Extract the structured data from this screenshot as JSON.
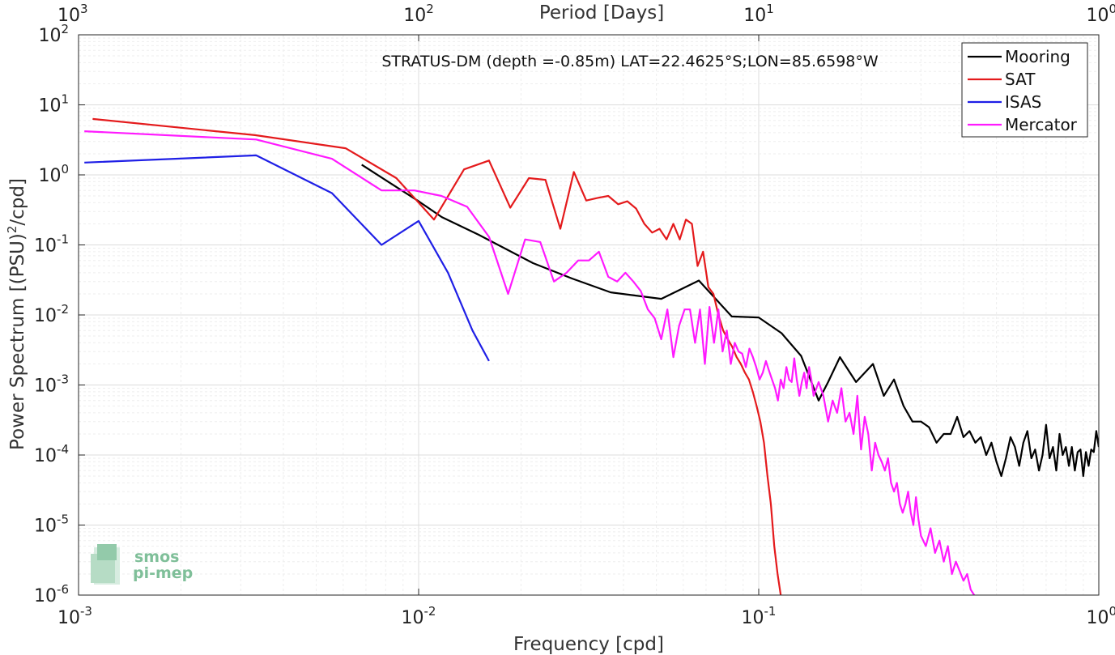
{
  "chart_data": {
    "type": "line",
    "title": "STRATUS-DM (depth =-0.85m) LAT=22.4625°S;LON=85.6598°W",
    "xlabel": "Frequency [cpd]",
    "ylabel": "Power Spectrum [(PSU)2/cpd]",
    "ylabel_parts": {
      "main": "Power Spectrum [(PSU)",
      "sup": "2",
      "tail": "/cpd]"
    },
    "top_xlabel": "Period [Days]",
    "xscale": "log",
    "yscale": "log",
    "xlim": [
      0.001,
      1
    ],
    "ylim": [
      1e-06,
      100
    ],
    "grid": true,
    "legend_position": "top-right",
    "x_ticks": [
      0.001,
      0.01,
      0.1,
      1
    ],
    "x_tick_labels": [
      {
        "base": "10",
        "exp": "-3"
      },
      {
        "base": "10",
        "exp": "-2"
      },
      {
        "base": "10",
        "exp": "-1"
      },
      {
        "base": "10",
        "exp": "0"
      }
    ],
    "y_ticks": [
      1e-06,
      1e-05,
      0.0001,
      0.001,
      0.01,
      0.1,
      1,
      10,
      100
    ],
    "y_tick_labels": [
      {
        "base": "10",
        "exp": "-6"
      },
      {
        "base": "10",
        "exp": "-5"
      },
      {
        "base": "10",
        "exp": "-4"
      },
      {
        "base": "10",
        "exp": "-3"
      },
      {
        "base": "10",
        "exp": "-2"
      },
      {
        "base": "10",
        "exp": "-1"
      },
      {
        "base": "10",
        "exp": "0"
      },
      {
        "base": "10",
        "exp": "1"
      },
      {
        "base": "10",
        "exp": "2"
      }
    ],
    "top_ticks": [
      1000,
      100,
      10,
      1
    ],
    "top_tick_labels": [
      {
        "base": "10",
        "exp": "3"
      },
      {
        "base": "10",
        "exp": "2"
      },
      {
        "base": "10",
        "exp": "1"
      },
      {
        "base": "10",
        "exp": "0"
      }
    ],
    "series": [
      {
        "name": "Mooring",
        "color": "#000000",
        "x": [
          0.0068,
          0.0083,
          0.01,
          0.0117,
          0.015,
          0.0217,
          0.0283,
          0.0367,
          0.0517,
          0.0667,
          0.0833,
          0.1,
          0.1167,
          0.1333,
          0.15,
          0.16,
          0.1733,
          0.1933,
          0.2167,
          0.2333,
          0.25,
          0.2667,
          0.2833,
          0.3,
          0.3167,
          0.3333,
          0.35,
          0.3667,
          0.3833,
          0.4,
          0.4167,
          0.4333,
          0.45,
          0.4667,
          0.4833,
          0.5,
          0.5167,
          0.5333,
          0.55,
          0.5667,
          0.5833,
          0.6,
          0.6167,
          0.6333,
          0.65,
          0.6667,
          0.6833,
          0.7,
          0.7167,
          0.7333,
          0.75,
          0.7667,
          0.7833,
          0.8,
          0.8167,
          0.8333,
          0.85,
          0.8667,
          0.8833,
          0.9,
          0.9167,
          0.9333,
          0.95,
          0.9667,
          0.9833,
          1.0
        ],
        "y": [
          1.4,
          0.75,
          0.42,
          0.25,
          0.14,
          0.055,
          0.033,
          0.021,
          0.017,
          0.031,
          0.0095,
          0.0092,
          0.0055,
          0.0026,
          0.0006,
          0.0011,
          0.0025,
          0.0011,
          0.002,
          0.0007,
          0.0012,
          0.0005,
          0.0003,
          0.0003,
          0.00025,
          0.00015,
          0.0002,
          0.0002,
          0.00035,
          0.00018,
          0.00022,
          0.00015,
          0.00018,
          0.0001,
          0.00015,
          8e-05,
          5e-05,
          9e-05,
          0.00018,
          0.00013,
          7e-05,
          0.00015,
          0.00022,
          9e-05,
          0.00012,
          6e-05,
          0.0001,
          0.00027,
          9e-05,
          0.00013,
          6e-05,
          0.0002,
          0.0001,
          0.00013,
          7e-05,
          0.00013,
          6e-05,
          0.00011,
          0.00012,
          5e-05,
          0.00011,
          7e-05,
          0.00012,
          0.00011,
          0.00022,
          0.00013
        ]
      },
      {
        "name": "SAT",
        "color": "#e41a1c",
        "x": [
          0.0011,
          0.0033,
          0.0061,
          0.0086,
          0.0111,
          0.0136,
          0.0161,
          0.0186,
          0.0211,
          0.0236,
          0.0261,
          0.0286,
          0.0311,
          0.0336,
          0.0361,
          0.0386,
          0.0411,
          0.0436,
          0.0461,
          0.0486,
          0.0511,
          0.0536,
          0.0561,
          0.0586,
          0.0611,
          0.0636,
          0.0661,
          0.0686,
          0.0711,
          0.0736,
          0.0761,
          0.0786,
          0.0811,
          0.0836,
          0.0861,
          0.0886,
          0.0911,
          0.0936,
          0.0961,
          0.0986,
          0.1011,
          0.1036,
          0.1061,
          0.1086,
          0.1111,
          0.1136,
          0.1161
        ],
        "y": [
          6.3,
          3.7,
          2.4,
          0.9,
          0.23,
          1.2,
          1.6,
          0.34,
          0.9,
          0.85,
          0.17,
          1.1,
          0.43,
          0.47,
          0.5,
          0.38,
          0.42,
          0.33,
          0.2,
          0.15,
          0.17,
          0.12,
          0.2,
          0.12,
          0.23,
          0.2,
          0.05,
          0.08,
          0.025,
          0.02,
          0.01,
          0.006,
          0.0045,
          0.0035,
          0.0025,
          0.002,
          0.0015,
          0.0012,
          0.0008,
          0.0005,
          0.0003,
          0.00015,
          5e-05,
          2e-05,
          5e-06,
          2e-06,
          1e-06
        ]
      },
      {
        "name": "ISAS",
        "color": "#1f1fe6",
        "x": [
          0.00104,
          0.00333,
          0.00556,
          0.00778,
          0.01,
          0.0122,
          0.0144,
          0.0161
        ],
        "y": [
          1.5,
          1.9,
          0.55,
          0.1,
          0.22,
          0.04,
          0.006,
          0.0022
        ]
      },
      {
        "name": "Mercator",
        "color": "#ff1aff",
        "x": [
          0.00104,
          0.00333,
          0.00556,
          0.00778,
          0.00972,
          0.01167,
          0.01389,
          0.01611,
          0.01833,
          0.02056,
          0.02278,
          0.025,
          0.02722,
          0.02944,
          0.03167,
          0.03389,
          0.03611,
          0.03833,
          0.04056,
          0.04278,
          0.045,
          0.04722,
          0.04944,
          0.05167,
          0.05389,
          0.05611,
          0.05833,
          0.06056,
          0.06278,
          0.065,
          0.06722,
          0.06944,
          0.07167,
          0.07389,
          0.07611,
          0.07833,
          0.08056,
          0.08278,
          0.085,
          0.08722,
          0.08944,
          0.09167,
          0.09389,
          0.09611,
          0.09833,
          0.1006,
          0.1028,
          0.105,
          0.1072,
          0.1094,
          0.1117,
          0.1139,
          0.1161,
          0.1183,
          0.1206,
          0.1228,
          0.125,
          0.1272,
          0.1294,
          0.1317,
          0.1339,
          0.1361,
          0.1383,
          0.1406,
          0.1428,
          0.145,
          0.15,
          0.155,
          0.16,
          0.165,
          0.17,
          0.175,
          0.18,
          0.185,
          0.19,
          0.195,
          0.2,
          0.205,
          0.21,
          0.215,
          0.22,
          0.225,
          0.23,
          0.235,
          0.24,
          0.245,
          0.25,
          0.255,
          0.26,
          0.265,
          0.27,
          0.275,
          0.28,
          0.285,
          0.29,
          0.295,
          0.3,
          0.31,
          0.32,
          0.33,
          0.34,
          0.35,
          0.36,
          0.37,
          0.38,
          0.39,
          0.4,
          0.41,
          0.42,
          0.43
        ],
        "y": [
          4.2,
          3.2,
          1.7,
          0.6,
          0.6,
          0.5,
          0.35,
          0.13,
          0.02,
          0.12,
          0.11,
          0.03,
          0.04,
          0.06,
          0.06,
          0.08,
          0.035,
          0.03,
          0.04,
          0.03,
          0.022,
          0.012,
          0.009,
          0.0045,
          0.012,
          0.0025,
          0.007,
          0.012,
          0.012,
          0.004,
          0.012,
          0.002,
          0.013,
          0.004,
          0.012,
          0.003,
          0.006,
          0.002,
          0.004,
          0.003,
          0.0028,
          0.0018,
          0.0033,
          0.0025,
          0.0018,
          0.0012,
          0.0015,
          0.0022,
          0.0016,
          0.0012,
          0.0009,
          0.0006,
          0.0012,
          0.0009,
          0.0018,
          0.0012,
          0.0011,
          0.0024,
          0.0012,
          0.0007,
          0.0011,
          0.0015,
          0.0009,
          0.0018,
          0.0012,
          0.0007,
          0.0011,
          0.0007,
          0.0003,
          0.0006,
          0.0004,
          0.0009,
          0.0003,
          0.0004,
          0.0002,
          0.0007,
          0.00012,
          0.00035,
          0.0002,
          6e-05,
          0.00015,
          0.0001,
          8e-05,
          6e-05,
          9e-05,
          4e-05,
          3e-05,
          4e-05,
          2e-05,
          1.5e-05,
          2e-05,
          3e-05,
          1.5e-05,
          1e-05,
          2.5e-05,
          1.2e-05,
          7e-06,
          5e-06,
          9e-06,
          4e-06,
          6e-06,
          3e-06,
          5e-06,
          2e-06,
          3e-06,
          2.2e-06,
          1.6e-06,
          2e-06,
          1.2e-06,
          1e-06
        ]
      }
    ]
  },
  "logo": {
    "line1": "smos",
    "line2": "pi-mep"
  }
}
